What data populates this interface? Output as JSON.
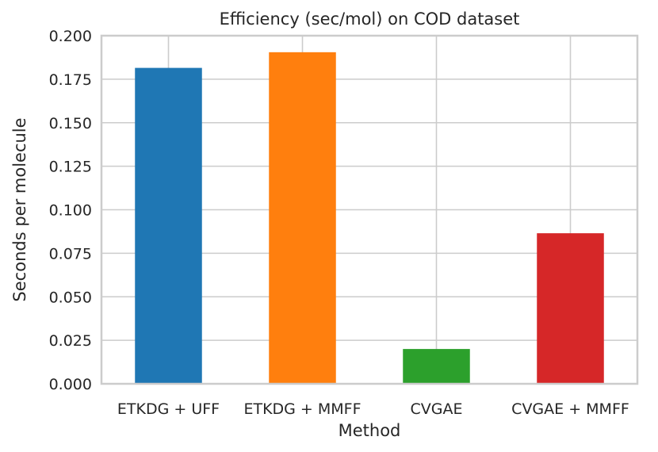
{
  "chart_data": {
    "type": "bar",
    "title": "Efficiency (sec/mol) on COD dataset",
    "xlabel": "Method",
    "ylabel": "Seconds per molecule",
    "categories": [
      "ETKDG + UFF",
      "ETKDG + MMFF",
      "CVGAE",
      "CVGAE + MMFF"
    ],
    "values": [
      0.1815,
      0.1905,
      0.02,
      0.0865
    ],
    "colors": [
      "#1f77b4",
      "#ff7f0e",
      "#2ca02c",
      "#d62728"
    ],
    "ylim": [
      0,
      0.2
    ],
    "yticks": [
      "0.000",
      "0.025",
      "0.050",
      "0.075",
      "0.100",
      "0.125",
      "0.150",
      "0.175",
      "0.200"
    ],
    "grid": true
  }
}
